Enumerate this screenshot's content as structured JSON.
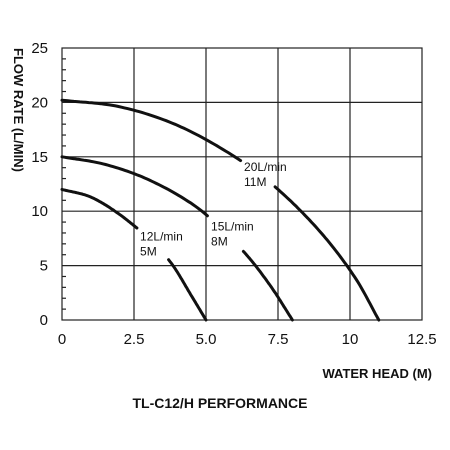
{
  "chart_data": {
    "type": "line",
    "title": "TL-C12/H PERFORMANCE",
    "xlabel": "WATER HEAD (M)",
    "ylabel": "FLOW RATE (L/MIN)",
    "xlim": [
      0,
      12.5
    ],
    "ylim": [
      0,
      25
    ],
    "x_ticks": [
      "0",
      "2.5",
      "5.0",
      "7.5",
      "10",
      "12.5"
    ],
    "y_ticks": [
      "0",
      "5",
      "10",
      "15",
      "20",
      "25"
    ],
    "grid": true,
    "series": [
      {
        "name": "12L/min 5M",
        "label_lines": [
          "12L/min",
          "5M"
        ],
        "points": [
          [
            0,
            12
          ],
          [
            1,
            11.3
          ],
          [
            2,
            9.7
          ],
          [
            3,
            7.5
          ],
          [
            3.8,
            5.2
          ],
          [
            4.5,
            2.2
          ],
          [
            5.0,
            0
          ]
        ],
        "gap_x": [
          2.6,
          3.7
        ]
      },
      {
        "name": "15L/min 8M",
        "label_lines": [
          "15L/min",
          "8M"
        ],
        "points": [
          [
            0,
            15
          ],
          [
            1.5,
            14.3
          ],
          [
            3,
            12.9
          ],
          [
            4.5,
            10.7
          ],
          [
            5.5,
            8.5
          ],
          [
            6.5,
            5.7
          ],
          [
            7.3,
            2.9
          ],
          [
            8,
            0
          ]
        ],
        "gap_x": [
          5.05,
          6.3
        ]
      },
      {
        "name": "20L/min 11M",
        "label_lines": [
          "20L/min",
          "11M"
        ],
        "points": [
          [
            0,
            20.2
          ],
          [
            2,
            19.6
          ],
          [
            4,
            17.9
          ],
          [
            6,
            15.0
          ],
          [
            7.5,
            12.0
          ],
          [
            9,
            8.0
          ],
          [
            10.2,
            3.8
          ],
          [
            11,
            0
          ]
        ],
        "gap_x": [
          6.2,
          7.4
        ]
      }
    ]
  }
}
